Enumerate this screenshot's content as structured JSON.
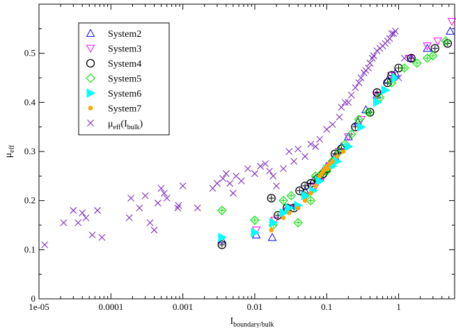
{
  "chart_data": {
    "type": "scatter",
    "title": "",
    "xlabel": {
      "main": "I",
      "sub": "boundary/bulk"
    },
    "ylabel": {
      "main": "μ",
      "sub": "eff"
    },
    "xscale": "log",
    "xlim": [
      1e-05,
      6
    ],
    "ylim": [
      0,
      0.6
    ],
    "xticks": [
      1e-05,
      0.0001,
      0.001,
      0.01,
      0.1,
      1
    ],
    "xtick_labels": [
      "1e-05",
      "0.0001",
      "0.001",
      "0.01",
      "0.1",
      "1"
    ],
    "yticks": [
      0,
      0.1,
      0.2,
      0.3,
      0.4,
      0.5
    ],
    "ytick_labels": [
      "0",
      "0.1",
      "0.2",
      "0.3",
      "0.4",
      "0.5"
    ],
    "grid": false,
    "legend_position": "top-left",
    "series": [
      {
        "name": "System2",
        "marker": "triangle-up",
        "color": "#0000ff",
        "x": [
          0.0035,
          0.0105,
          0.0175,
          0.027,
          0.037,
          0.05,
          0.065,
          0.08,
          0.09,
          0.1,
          0.11,
          0.13,
          0.16,
          0.2,
          0.27,
          0.35,
          0.5,
          0.7,
          0.9,
          1.5,
          2.5,
          5.2
        ],
        "y": [
          0.12,
          0.13,
          0.125,
          0.18,
          0.19,
          0.22,
          0.24,
          0.25,
          0.26,
          0.27,
          0.275,
          0.29,
          0.31,
          0.33,
          0.36,
          0.385,
          0.415,
          0.445,
          0.46,
          0.49,
          0.51,
          0.545
        ]
      },
      {
        "name": "System3",
        "marker": "triangle-down",
        "color": "#ff00ff",
        "x": [
          0.0105,
          0.019,
          0.03,
          0.05,
          0.07,
          0.09,
          0.11,
          0.15,
          0.2,
          0.3,
          0.5,
          0.8,
          1.4,
          2.5,
          3.5,
          5.5
        ],
        "y": [
          0.14,
          0.16,
          0.185,
          0.21,
          0.23,
          0.25,
          0.27,
          0.3,
          0.33,
          0.365,
          0.415,
          0.455,
          0.49,
          0.515,
          0.525,
          0.565
        ]
      },
      {
        "name": "System4",
        "marker": "circle",
        "color": "#000000",
        "x": [
          0.0035,
          0.017,
          0.021,
          0.028,
          0.035,
          0.042,
          0.05,
          0.06,
          0.075,
          0.09,
          0.1,
          0.13,
          0.16,
          0.25,
          0.4,
          0.5,
          0.7,
          0.8,
          1.0,
          1.5,
          3.2,
          4.8
        ],
        "y": [
          0.11,
          0.205,
          0.17,
          0.185,
          0.185,
          0.22,
          0.23,
          0.235,
          0.245,
          0.255,
          0.265,
          0.295,
          0.305,
          0.35,
          0.38,
          0.42,
          0.44,
          0.455,
          0.47,
          0.49,
          0.51,
          0.52
        ]
      },
      {
        "name": "System5",
        "marker": "diamond",
        "color": "#00dd00",
        "x": [
          0.0035,
          0.01,
          0.018,
          0.025,
          0.032,
          0.04,
          0.05,
          0.06,
          0.07,
          0.085,
          0.1,
          0.12,
          0.15,
          0.18,
          0.22,
          0.28,
          0.38,
          0.55,
          0.8,
          1.2,
          1.8,
          2.5,
          3.0,
          4.5
        ],
        "y": [
          0.18,
          0.16,
          0.15,
          0.2,
          0.21,
          0.155,
          0.21,
          0.2,
          0.25,
          0.255,
          0.26,
          0.28,
          0.3,
          0.315,
          0.335,
          0.365,
          0.38,
          0.41,
          0.44,
          0.47,
          0.48,
          0.49,
          0.495,
          0.525
        ]
      },
      {
        "name": "System6",
        "marker": "triangle-right",
        "color": "#00ffff",
        "x": [
          0.0035,
          0.01,
          0.018,
          0.025,
          0.03,
          0.04,
          0.05,
          0.065,
          0.08,
          0.1,
          0.12,
          0.14,
          0.2,
          0.3,
          0.5,
          0.65,
          0.9
        ],
        "y": [
          0.125,
          0.135,
          0.155,
          0.175,
          0.185,
          0.19,
          0.21,
          0.22,
          0.24,
          0.265,
          0.27,
          0.28,
          0.31,
          0.35,
          0.4,
          0.425,
          0.45
        ]
      },
      {
        "name": "System7",
        "marker": "dot",
        "color": "#ffa500",
        "x": [
          0.017,
          0.025,
          0.03,
          0.04,
          0.05,
          0.06,
          0.07,
          0.08,
          0.085,
          0.09,
          0.095,
          0.1,
          0.105,
          0.11,
          0.12,
          0.14,
          0.17
        ],
        "y": [
          0.14,
          0.165,
          0.175,
          0.185,
          0.2,
          0.215,
          0.23,
          0.25,
          0.255,
          0.26,
          0.265,
          0.27,
          0.265,
          0.275,
          0.28,
          0.29,
          0.3
        ]
      },
      {
        "name": {
          "main": "μ",
          "sub": "eff",
          "rest": "(I",
          "sub2": "bulk",
          "close": ")"
        },
        "marker": "x",
        "color": "#7b2fbe",
        "x": [
          1.2e-05,
          2.2e-05,
          3e-05,
          3.5e-05,
          4e-05,
          4.5e-05,
          5.5e-05,
          6.5e-05,
          7.5e-05,
          0.00018,
          0.00019,
          0.00025,
          0.0003,
          0.00035,
          0.0004,
          0.00045,
          0.0005,
          0.00055,
          0.0006,
          0.00085,
          0.00087,
          0.001,
          0.0016,
          0.0026,
          0.003,
          0.0036,
          0.004,
          0.0045,
          0.005,
          0.0055,
          0.0065,
          0.008,
          0.01,
          0.012,
          0.014,
          0.016,
          0.018,
          0.02,
          0.025,
          0.03,
          0.035,
          0.04,
          0.05,
          0.06,
          0.07,
          0.08,
          0.1,
          0.12,
          0.15,
          0.16,
          0.18,
          0.2,
          0.22,
          0.25,
          0.28,
          0.3,
          0.33,
          0.35,
          0.38,
          0.4,
          0.43,
          0.45,
          0.5,
          0.55,
          0.6,
          0.65,
          0.7,
          0.75,
          0.8,
          0.85,
          0.9,
          1.0,
          1.2
        ],
        "y": [
          0.11,
          0.155,
          0.18,
          0.155,
          0.175,
          0.165,
          0.13,
          0.18,
          0.125,
          0.165,
          0.205,
          0.185,
          0.21,
          0.155,
          0.14,
          0.195,
          0.225,
          0.215,
          0.205,
          0.185,
          0.19,
          0.23,
          0.185,
          0.225,
          0.235,
          0.245,
          0.255,
          0.235,
          0.215,
          0.25,
          0.24,
          0.265,
          0.255,
          0.27,
          0.275,
          0.26,
          0.25,
          0.23,
          0.265,
          0.3,
          0.28,
          0.305,
          0.29,
          0.315,
          0.31,
          0.325,
          0.345,
          0.355,
          0.37,
          0.39,
          0.4,
          0.4,
          0.415,
          0.43,
          0.44,
          0.45,
          0.46,
          0.465,
          0.47,
          0.48,
          0.49,
          0.495,
          0.505,
          0.51,
          0.515,
          0.52,
          0.525,
          0.53,
          0.54,
          0.54,
          0.545,
          0.45,
          0.49
        ]
      }
    ]
  }
}
